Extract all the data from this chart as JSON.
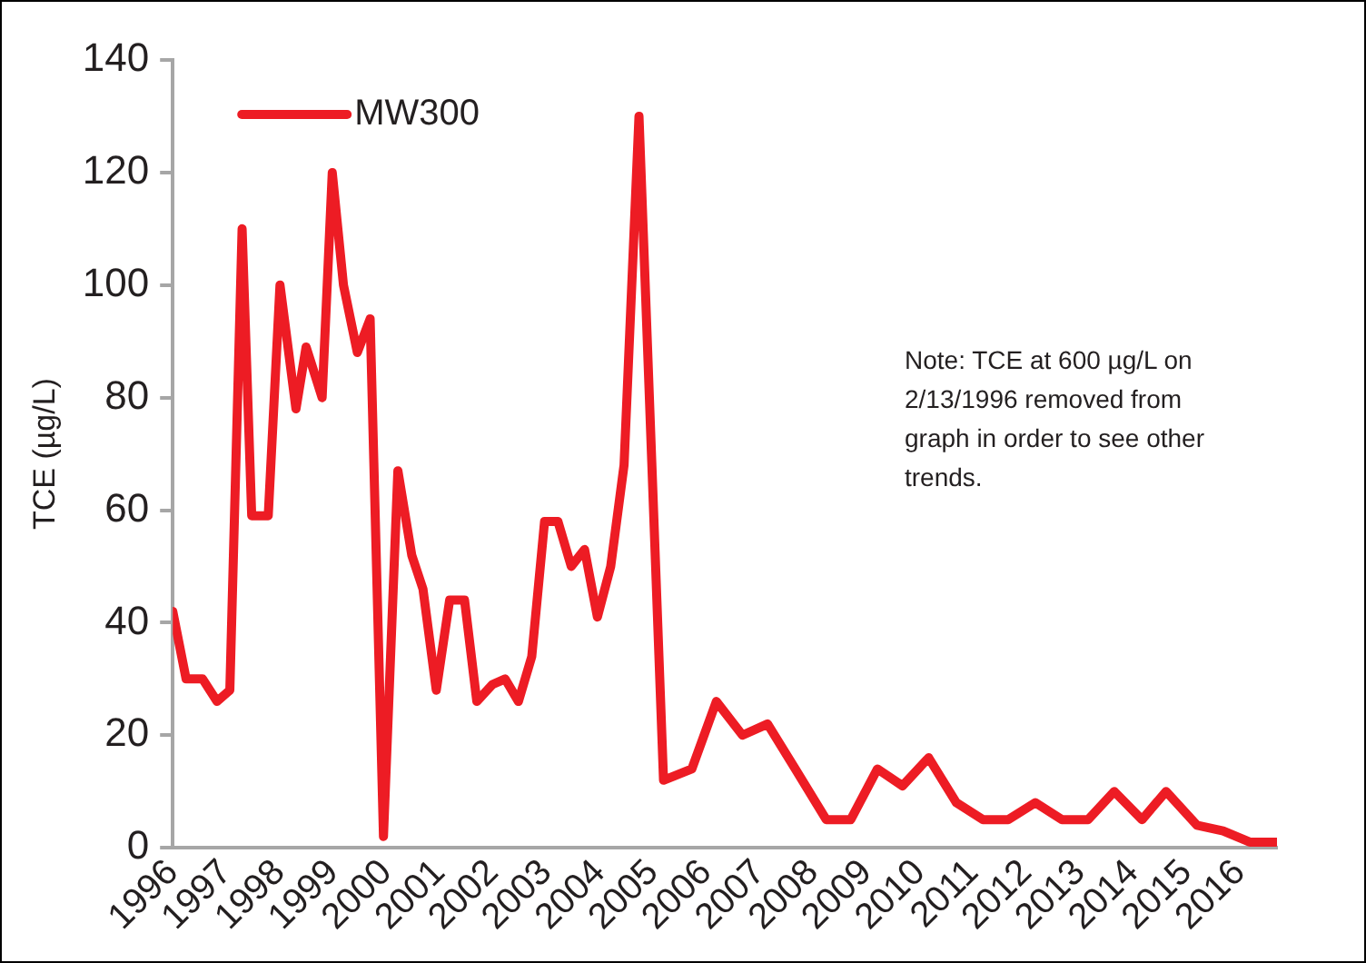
{
  "chart_data": {
    "type": "line",
    "ylabel": "TCE (µg/L)",
    "annotations": [
      "Note: TCE at 600 µg/L on 2/13/1996 removed from graph in order to see other trends."
    ],
    "xlim": [
      1996,
      2016.7
    ],
    "xticks": [
      1996,
      1997,
      1998,
      1999,
      2000,
      2001,
      2002,
      2003,
      2004,
      2005,
      2006,
      2007,
      2008,
      2009,
      2010,
      2011,
      2012,
      2013,
      2014,
      2015,
      2016
    ],
    "ylim": [
      0,
      140
    ],
    "yticks": [
      0,
      20,
      40,
      60,
      80,
      100,
      120,
      140
    ],
    "grid": false,
    "legend": "top left",
    "marker": "none",
    "line_style": "solid",
    "series": [
      {
        "name": "MW300",
        "color": "#ed1c24",
        "x": [
          1996.0,
          1996.25,
          1996.56,
          1996.83,
          1997.07,
          1997.3,
          1997.48,
          1997.79,
          1998.01,
          1998.31,
          1998.5,
          1998.8,
          1998.99,
          1999.2,
          1999.46,
          1999.7,
          1999.95,
          2000.22,
          2000.48,
          2000.69,
          2000.94,
          2001.19,
          2001.47,
          2001.7,
          2001.99,
          2002.23,
          2002.48,
          2002.73,
          2002.97,
          2003.22,
          2003.47,
          2003.72,
          2003.96,
          2004.21,
          2004.46,
          2004.74,
          2005.2,
          2005.73,
          2006.19,
          2006.68,
          2007.15,
          2007.67,
          2008.25,
          2008.71,
          2009.21,
          2009.68,
          2010.17,
          2010.69,
          2011.19,
          2011.66,
          2012.17,
          2012.67,
          2013.16,
          2013.65,
          2014.17,
          2014.62,
          2015.2,
          2015.69,
          2016.19,
          2016.68
        ],
        "values": [
          42,
          30,
          30,
          26,
          28,
          110,
          59,
          59,
          100,
          78,
          89,
          80,
          120,
          100,
          88,
          94,
          2,
          67,
          52,
          46,
          28,
          44,
          44,
          26,
          29,
          30,
          26,
          34,
          58,
          58,
          50,
          53,
          41,
          50,
          68,
          130,
          12,
          14,
          26,
          20,
          22,
          14,
          5,
          5,
          14,
          11,
          16,
          8,
          5,
          5,
          8,
          5,
          5,
          10,
          5,
          10,
          4,
          3,
          1,
          1
        ]
      }
    ]
  }
}
